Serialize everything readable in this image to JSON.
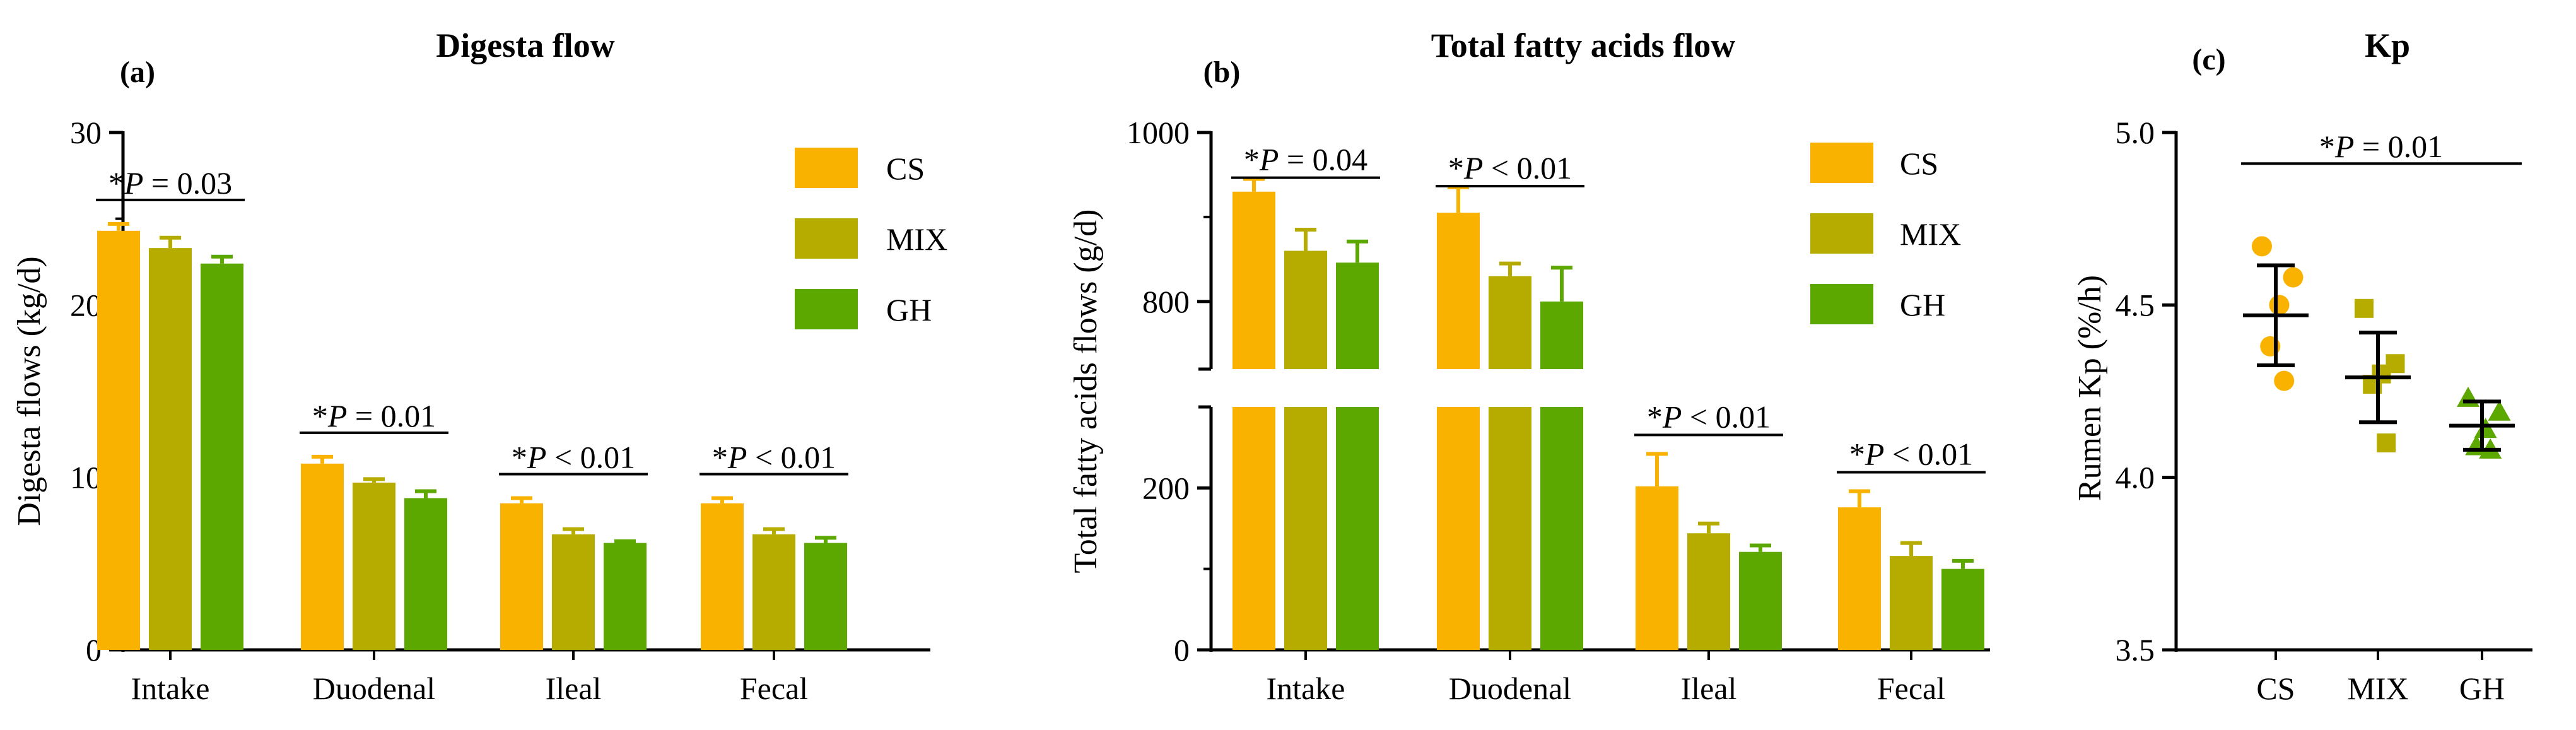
{
  "colors": {
    "CS": "#f9b200",
    "MIX": "#b6ac00",
    "GH": "#5da800",
    "axis": "#000000"
  },
  "chart_data": [
    {
      "type": "bar",
      "panel_label": "(a)",
      "title": "Digesta flow",
      "xlabel": "",
      "ylabel": "Digesta flows (kg/d)",
      "ylim": [
        0,
        30
      ],
      "yticks": [
        0,
        10,
        20,
        30
      ],
      "categories": [
        "Intake",
        "Duodenal",
        "Ileal",
        "Fecal"
      ],
      "series": [
        {
          "name": "CS",
          "values": [
            24.3,
            10.8,
            8.5,
            8.5
          ],
          "errors": [
            0.4,
            0.4,
            0.3,
            0.3
          ]
        },
        {
          "name": "MIX",
          "values": [
            23.3,
            9.7,
            6.7,
            6.7
          ],
          "errors": [
            0.6,
            0.2,
            0.3,
            0.3
          ]
        },
        {
          "name": "GH",
          "values": [
            22.4,
            8.8,
            6.2,
            6.2
          ],
          "errors": [
            0.4,
            0.4,
            0.1,
            0.3
          ]
        }
      ],
      "annotations": [
        "*P = 0.03",
        "*P = 0.01",
        "*P < 0.01",
        "*P < 0.01"
      ],
      "legend": "top-right"
    },
    {
      "type": "bar",
      "panel_label": "(b)",
      "title": "Total fatty acids flow",
      "xlabel": "",
      "ylabel": "Total fatty acids flows (g/d)",
      "axis_break": {
        "lower": [
          0,
          300
        ],
        "upper": [
          720,
          1000
        ]
      },
      "yticks": [
        0,
        200,
        800,
        1000
      ],
      "categories": [
        "Intake",
        "Duodenal",
        "Ileal",
        "Fecal"
      ],
      "series": [
        {
          "name": "CS",
          "values": [
            930,
            905,
            202,
            176
          ],
          "errors": [
            15,
            30,
            40,
            20
          ]
        },
        {
          "name": "MIX",
          "values": [
            860,
            830,
            144,
            116
          ],
          "errors": [
            25,
            15,
            12,
            16
          ]
        },
        {
          "name": "GH",
          "values": [
            846,
            800,
            121,
            100
          ],
          "errors": [
            25,
            40,
            8,
            10
          ]
        }
      ],
      "annotations": [
        "*P = 0.04",
        "*P < 0.01",
        "*P < 0.01",
        "*P < 0.01"
      ],
      "legend": "top-right"
    },
    {
      "type": "scatter",
      "panel_label": "(c)",
      "title": "Kp",
      "xlabel": "",
      "ylabel": "Rumen Kp (%/h)",
      "ylim": [
        3.5,
        5.0
      ],
      "yticks": [
        "3.5",
        "4.0",
        "4.5",
        "5.0"
      ],
      "categories": [
        "CS",
        "MIX",
        "GH"
      ],
      "series": [
        {
          "name": "CS",
          "marker": "circle",
          "points": [
            4.67,
            4.58,
            4.5,
            4.38,
            4.28
          ],
          "mean": 4.47,
          "sd": 0.145
        },
        {
          "name": "MIX",
          "marker": "square",
          "points": [
            4.49,
            4.33,
            4.3,
            4.27,
            4.1
          ],
          "mean": 4.29,
          "sd": 0.13
        },
        {
          "name": "GH",
          "marker": "triangle",
          "points": [
            4.23,
            4.19,
            4.14,
            4.09,
            4.08
          ],
          "mean": 4.15,
          "sd": 0.07
        }
      ],
      "annotations": [
        "*P = 0.01"
      ]
    }
  ]
}
